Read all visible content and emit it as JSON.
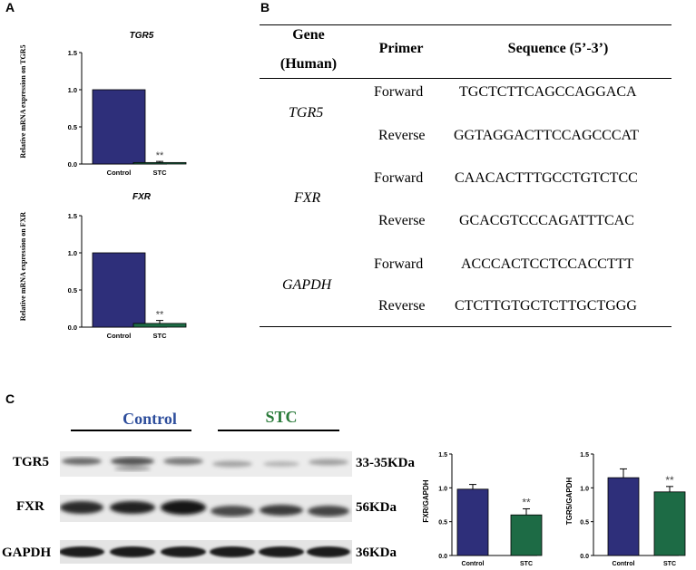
{
  "panels": {
    "a_label": "A",
    "b_label": "B",
    "c_label": "C"
  },
  "chart_data": [
    {
      "type": "bar",
      "title": "TGR5",
      "ylabel": "Relative mRNA expression on TGR5",
      "categories": [
        "Control",
        "STC"
      ],
      "values": [
        1.0,
        0.02
      ],
      "errors": [
        0.0,
        0.015
      ],
      "ylim": [
        0,
        1.5
      ],
      "yticks": [
        "0.0",
        "0.5",
        "1.0",
        "1.5"
      ],
      "colors": [
        "#2e2f7a",
        "#1d6b45"
      ],
      "significance": [
        "",
        "**"
      ]
    },
    {
      "type": "bar",
      "title": "FXR",
      "ylabel": "Relative mRNA expression on FXR",
      "categories": [
        "Control",
        "STC"
      ],
      "values": [
        1.0,
        0.05
      ],
      "errors": [
        0.0,
        0.04
      ],
      "ylim": [
        0,
        1.5
      ],
      "yticks": [
        "0.0",
        "0.5",
        "1.0",
        "1.5"
      ],
      "colors": [
        "#2e2f7a",
        "#1d6b45"
      ],
      "significance": [
        "",
        "**"
      ]
    },
    {
      "type": "bar",
      "title": "",
      "ylabel": "FXR/GAPDH",
      "categories": [
        "Control",
        "STC"
      ],
      "values": [
        0.98,
        0.6
      ],
      "errors": [
        0.07,
        0.09
      ],
      "ylim": [
        0,
        1.5
      ],
      "yticks": [
        "0.0",
        "0.5",
        "1.0",
        "1.5"
      ],
      "colors": [
        "#2e2f7a",
        "#1d6b45"
      ],
      "significance": [
        "",
        "**"
      ]
    },
    {
      "type": "bar",
      "title": "",
      "ylabel": "TGR5/GAPDH",
      "categories": [
        "Control",
        "STC"
      ],
      "values": [
        1.15,
        0.94
      ],
      "errors": [
        0.13,
        0.08
      ],
      "ylim": [
        0,
        1.5
      ],
      "yticks": [
        "0.0",
        "0.5",
        "1.0",
        "1.5"
      ],
      "colors": [
        "#2e2f7a",
        "#1d6b45"
      ],
      "significance": [
        "",
        "**"
      ]
    }
  ],
  "primer_table": {
    "headers": {
      "gene": "Gene",
      "gene_sub": "(Human)",
      "primer": "Primer",
      "sequence": "Sequence (5’-3’)"
    },
    "rows": [
      {
        "gene": "TGR5",
        "fwd_label": "Forward",
        "fwd_seq": "TGCTCTTCAGCCAGGACA",
        "rev_label": "Reverse",
        "rev_seq": "GGTAGGACTTCCAGCCCAT"
      },
      {
        "gene": "FXR",
        "fwd_label": "Forward",
        "fwd_seq": "CAACACTTTGCCTGTCTCC",
        "rev_label": "Reverse",
        "rev_seq": "GCACGTCCCAGATTTCAC"
      },
      {
        "gene": "GAPDH",
        "fwd_label": "Forward",
        "fwd_seq": "ACCCACTCCTCCACCTTT",
        "rev_label": "Reverse",
        "rev_seq": "CTCTTGTGCTCTTGCTGGG"
      }
    ]
  },
  "western_blot": {
    "groups": [
      {
        "label": "Control",
        "color": "#2e4e9c"
      },
      {
        "label": "STC",
        "color": "#2a7a3a"
      }
    ],
    "bands": [
      {
        "protein": "TGR5",
        "size": "33-35KDa"
      },
      {
        "protein": "FXR",
        "size": "56KDa"
      },
      {
        "protein": "GAPDH",
        "size": "36KDa"
      }
    ]
  }
}
